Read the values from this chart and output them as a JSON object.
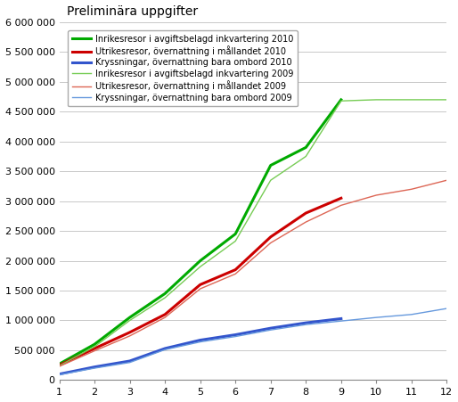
{
  "title": "Preliminära uppgifter",
  "xlim": [
    1,
    12
  ],
  "ylim": [
    0,
    6000000
  ],
  "yticks": [
    0,
    500000,
    1000000,
    1500000,
    2000000,
    2500000,
    3000000,
    3500000,
    4000000,
    4500000,
    5000000,
    5500000,
    6000000
  ],
  "xticks": [
    1,
    2,
    3,
    4,
    5,
    6,
    7,
    8,
    9,
    10,
    11,
    12
  ],
  "series": [
    {
      "label": "Inrikesresor i avgiftsbelagd inkvartering 2010",
      "color": "#00aa00",
      "linewidth": 2.2,
      "linestyle": "solid",
      "x": [
        1,
        2,
        3,
        4,
        5,
        6,
        7,
        8,
        9
      ],
      "y": [
        270000,
        600000,
        1050000,
        1450000,
        2000000,
        2450000,
        3600000,
        3900000,
        4700000
      ]
    },
    {
      "label": "Utrikesresor, övernattning i mållandet 2010",
      "color": "#cc0000",
      "linewidth": 2.2,
      "linestyle": "solid",
      "x": [
        1,
        2,
        3,
        4,
        5,
        6,
        7,
        8,
        9
      ],
      "y": [
        250000,
        530000,
        800000,
        1100000,
        1600000,
        1850000,
        2400000,
        2800000,
        3050000
      ]
    },
    {
      "label": "Kryssningar, övernattning bara ombord 2010",
      "color": "#3355cc",
      "linewidth": 2.2,
      "linestyle": "solid",
      "x": [
        1,
        2,
        3,
        4,
        5,
        6,
        7,
        8,
        9
      ],
      "y": [
        100000,
        220000,
        320000,
        530000,
        670000,
        760000,
        870000,
        960000,
        1030000
      ]
    },
    {
      "label": "Inrikesresor i avgiftsbelagd inkvartering 2009",
      "color": "#77cc55",
      "linewidth": 1.0,
      "linestyle": "solid",
      "x": [
        1,
        2,
        3,
        4,
        5,
        6,
        7,
        8,
        9,
        10,
        11,
        12
      ],
      "y": [
        240000,
        560000,
        1000000,
        1380000,
        1900000,
        2330000,
        3350000,
        3750000,
        4680000,
        4700000,
        4700000,
        4700000
      ]
    },
    {
      "label": "Utrikesresor, övernattning i mållandet 2009",
      "color": "#dd6655",
      "linewidth": 1.0,
      "linestyle": "solid",
      "x": [
        1,
        2,
        3,
        4,
        5,
        6,
        7,
        8,
        9,
        10,
        11,
        12
      ],
      "y": [
        230000,
        490000,
        740000,
        1050000,
        1530000,
        1780000,
        2300000,
        2650000,
        2930000,
        3100000,
        3200000,
        3350000
      ]
    },
    {
      "label": "Kryssningar, övernattning bara ombord 2009",
      "color": "#6699dd",
      "linewidth": 1.0,
      "linestyle": "solid",
      "x": [
        1,
        2,
        3,
        4,
        5,
        6,
        7,
        8,
        9,
        10,
        11,
        12
      ],
      "y": [
        90000,
        200000,
        295000,
        510000,
        640000,
        730000,
        840000,
        930000,
        990000,
        1050000,
        1100000,
        1200000
      ]
    }
  ],
  "legend_fontsize": 7.0,
  "title_fontsize": 10,
  "background_color": "#ffffff",
  "grid_color": "#c8c8c8",
  "figsize": [
    5.14,
    4.51
  ],
  "dpi": 100
}
